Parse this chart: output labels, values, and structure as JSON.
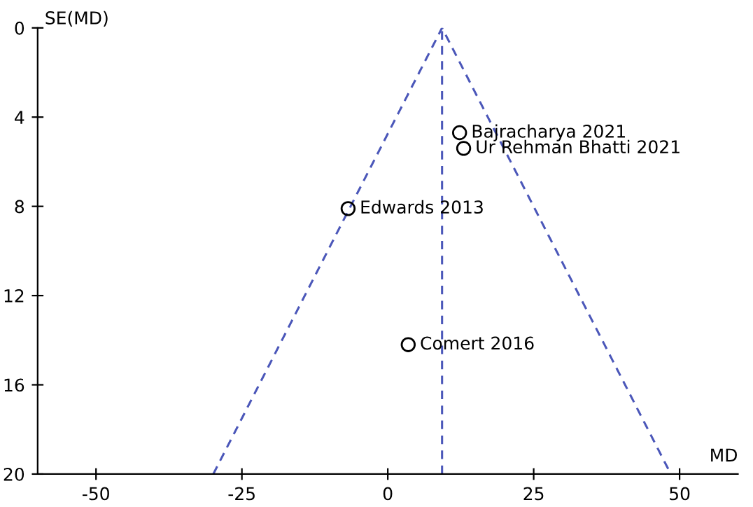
{
  "chart_data": {
    "type": "scatter",
    "xlabel": "MD",
    "ylabel": "SE(MD)",
    "xlim": [
      -60,
      60
    ],
    "xticks": [
      -50,
      -25,
      0,
      25,
      50
    ],
    "ylim": [
      20,
      0
    ],
    "yticks": [
      0,
      4,
      8,
      12,
      16,
      20
    ],
    "grid": false,
    "legend": false,
    "series": [
      {
        "type": "line",
        "color": "#4b57b9",
        "line_style": "dashed",
        "marker": "none",
        "x": [
          -29.9,
          9.3,
          48.5
        ],
        "values": [
          20,
          0,
          20
        ]
      },
      {
        "color": "#000000",
        "marker": "circle",
        "x": [
          12.3,
          13.0,
          -6.8,
          3.5
        ],
        "values": [
          4.7,
          5.4,
          8.1,
          14.2
        ]
      }
    ],
    "ref_lines": [
      {
        "axis": "x",
        "value": 9.3,
        "color": "#4b57b9",
        "line_style": "dashed"
      }
    ],
    "annotations": [
      {
        "text": "Bajracharya 2021",
        "x": 12.3,
        "y": 4.7
      },
      {
        "text": "Ur Rehman Bhatti 2021",
        "x": 13.0,
        "y": 5.4
      },
      {
        "text": "Edwards 2013",
        "x": -6.8,
        "y": 8.1
      },
      {
        "text": "Comert 2016",
        "x": 3.5,
        "y": 14.2
      }
    ]
  }
}
